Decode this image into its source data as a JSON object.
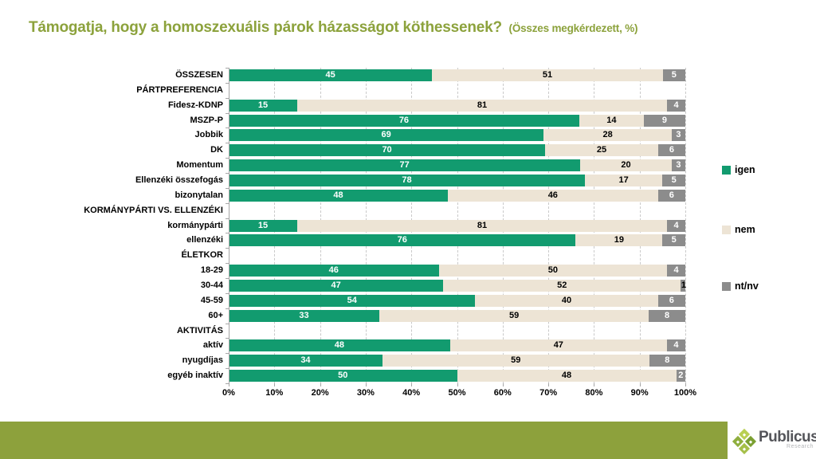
{
  "title": {
    "main": "Támogatja, hogy a homoszexuális párok házasságot köthessenek?",
    "suffix": "(Összes megkérdezett, %)"
  },
  "legend": [
    {
      "label": "igen",
      "color": "#129b6f"
    },
    {
      "label": "nem",
      "color": "#ede4d5"
    },
    {
      "label": "nt/nv",
      "color": "#8c8c8c"
    }
  ],
  "colors": {
    "title": "#8ca23c",
    "footer_band": "#8da13c",
    "axis": "#a6a6a6",
    "gridline": "#c9c9c9",
    "value_on_green": "#ffffff",
    "value_on_beige": "#000000",
    "value_on_gray": "#ffffff",
    "logo_brand_text": "#54555a",
    "logo_greens": [
      "#b9cf52",
      "#8fae3e",
      "#7ba032",
      "#a5bf49"
    ]
  },
  "chart_data": {
    "type": "bar",
    "stacked": true,
    "orientation": "horizontal",
    "unit": "%",
    "series_names": [
      "igen",
      "nem",
      "nt/nv"
    ],
    "x_axis": {
      "min": 0,
      "max": 100,
      "ticks": [
        "0%",
        "10%",
        "20%",
        "30%",
        "40%",
        "50%",
        "60%",
        "70%",
        "80%",
        "90%",
        "100%"
      ]
    },
    "rows": [
      {
        "label": "ÖSSZESEN",
        "type": "bar",
        "values": [
          45,
          51,
          5
        ]
      },
      {
        "label": "PÁRTPREFERENCIA",
        "type": "header"
      },
      {
        "label": "Fidesz-KDNP",
        "type": "bar",
        "values": [
          15,
          81,
          4
        ]
      },
      {
        "label": "MSZP-P",
        "type": "bar",
        "values": [
          76,
          14,
          9
        ]
      },
      {
        "label": "Jobbik",
        "type": "bar",
        "values": [
          69,
          28,
          3
        ]
      },
      {
        "label": "DK",
        "type": "bar",
        "values": [
          70,
          25,
          6
        ]
      },
      {
        "label": "Momentum",
        "type": "bar",
        "values": [
          77,
          20,
          3
        ]
      },
      {
        "label": "Ellenzéki összefogás",
        "type": "bar",
        "values": [
          78,
          17,
          5
        ]
      },
      {
        "label": "bizonytalan",
        "type": "bar",
        "values": [
          48,
          46,
          6
        ]
      },
      {
        "label": "KORMÁNYPÁRTI VS. ELLENZÉKI",
        "type": "header"
      },
      {
        "label": "kormánypárti",
        "type": "bar",
        "values": [
          15,
          81,
          4
        ]
      },
      {
        "label": "ellenzéki",
        "type": "bar",
        "values": [
          76,
          19,
          5
        ]
      },
      {
        "label": "ÉLETKOR",
        "type": "header"
      },
      {
        "label": "18-29",
        "type": "bar",
        "values": [
          46,
          50,
          4
        ]
      },
      {
        "label": "30-44",
        "type": "bar",
        "values": [
          47,
          52,
          1
        ]
      },
      {
        "label": "45-59",
        "type": "bar",
        "values": [
          54,
          40,
          6
        ]
      },
      {
        "label": "60+",
        "type": "bar",
        "values": [
          33,
          59,
          8
        ]
      },
      {
        "label": "AKTIVITÁS",
        "type": "header"
      },
      {
        "label": "aktív",
        "type": "bar",
        "values": [
          48,
          47,
          4
        ]
      },
      {
        "label": "nyugdíjas",
        "type": "bar",
        "values": [
          34,
          59,
          8
        ]
      },
      {
        "label": "egyéb inaktív",
        "type": "bar",
        "values": [
          50,
          48,
          2
        ]
      }
    ]
  },
  "footer": {
    "brand": "Publicus",
    "brand_sub": "Research"
  }
}
